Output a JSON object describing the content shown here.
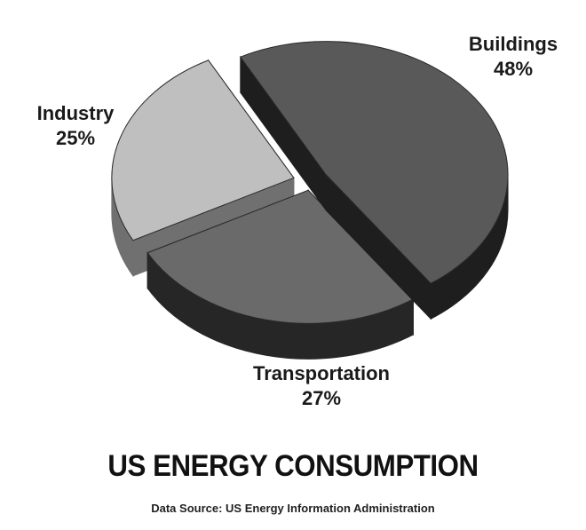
{
  "chart_data": {
    "type": "pie",
    "title": "US ENERGY CONSUMPTION",
    "subtitle": "Data Source: US Energy Information Administration",
    "slices": [
      {
        "label": "Buildings",
        "value": 48,
        "value_label": "48%",
        "color": "#595959",
        "side_color": "#1e1e1e"
      },
      {
        "label": "Transportation",
        "value": 27,
        "value_label": "27%",
        "color": "#6a6a6a",
        "side_color": "#262626"
      },
      {
        "label": "Industry",
        "value": 25,
        "value_label": "25%",
        "color": "#bfbfbf",
        "side_color": "#707070"
      }
    ],
    "style": "3d-exploded",
    "legend": "none"
  }
}
